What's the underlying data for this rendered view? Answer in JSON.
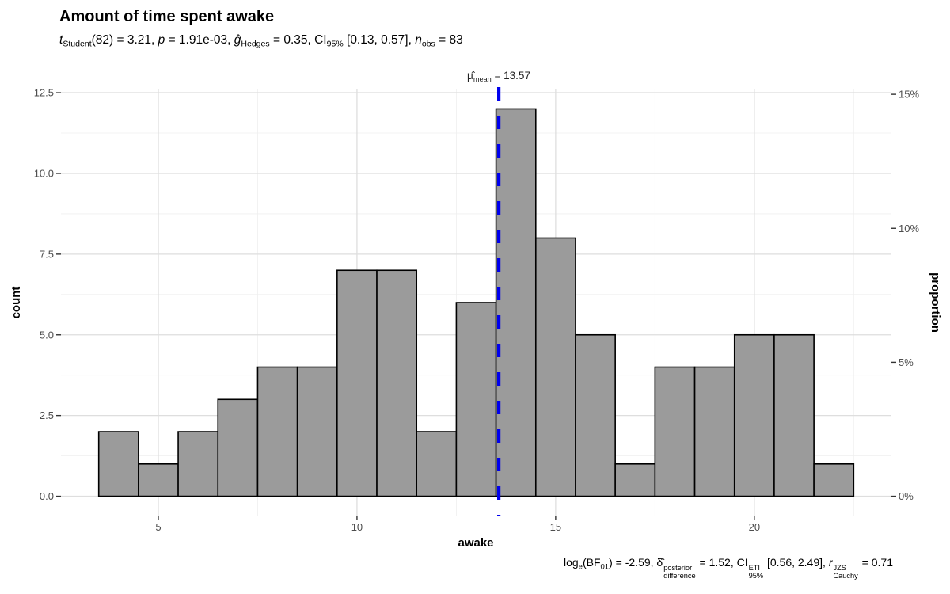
{
  "header": {
    "title": "Amount of time spent awake"
  },
  "rich_text": {
    "subtitle": [
      {
        "t": "t",
        "i": true
      },
      {
        "t": "Student",
        "s": "sub"
      },
      {
        "t": "(82) = 3.21, "
      },
      {
        "t": "p",
        "i": true
      },
      {
        "t": " = 1.91e-03, "
      },
      {
        "t": "ĝ",
        "i": true
      },
      {
        "t": "Hedges",
        "s": "sub"
      },
      {
        "t": " = 0.35, CI"
      },
      {
        "t": "95%",
        "s": "sub"
      },
      {
        "t": " [0.13, 0.57], "
      },
      {
        "t": "n",
        "i": true
      },
      {
        "t": "obs",
        "s": "sub"
      },
      {
        "t": " = 83"
      }
    ],
    "mean_label": [
      {
        "t": "μ̂"
      },
      {
        "t": "mean",
        "s": "sub"
      },
      {
        "t": " = 13.57"
      }
    ],
    "caption": [
      {
        "t": "log"
      },
      {
        "t": "e",
        "s": "sub"
      },
      {
        "t": "(BF"
      },
      {
        "t": "01",
        "s": "sub"
      },
      {
        "t": ") = -2.59, "
      },
      {
        "t": "δ̂"
      },
      {
        "sup": "posterior",
        "sub": "difference"
      },
      {
        "t": " = 1.52, CI"
      },
      {
        "sup": "ETI",
        "sub": "95%"
      },
      {
        "t": " [0.56, 2.49], "
      },
      {
        "t": "r",
        "i": true
      },
      {
        "sup": "JZS",
        "sub": "Cauchy"
      },
      {
        "t": " = 0.71"
      }
    ]
  },
  "chart_data": {
    "type": "bar",
    "subtype": "histogram",
    "title": "Amount of time spent awake",
    "xlabel": "awake",
    "ylabel": "count",
    "y2label": "proportion",
    "bin_width": 1,
    "bin_centers": [
      4,
      5,
      6,
      7,
      8,
      9,
      10,
      11,
      12,
      13,
      14,
      15,
      16,
      17,
      18,
      19,
      20,
      21,
      22
    ],
    "counts": [
      2,
      1,
      2,
      3,
      4,
      4,
      7,
      7,
      2,
      6,
      12,
      8,
      5,
      1,
      4,
      4,
      5,
      5,
      1
    ],
    "n_obs": 83,
    "mean": 13.57,
    "mean_label_value": "13.57",
    "x_ticks": [
      5,
      10,
      15,
      20
    ],
    "x_tick_labels": [
      "5",
      "10",
      "15",
      "20"
    ],
    "x_minor": [
      7.5,
      12.5,
      17.5,
      22.5
    ],
    "y_ticks": [
      0,
      2.5,
      5,
      7.5,
      10,
      12.5
    ],
    "y_tick_labels": [
      "0.0",
      "2.5",
      "5.0",
      "7.5",
      "10.0",
      "12.5"
    ],
    "y_minor": [
      1.25,
      3.75,
      6.25,
      8.75,
      11.25
    ],
    "y2_ticks": [
      0,
      5,
      10,
      15
    ],
    "y2_tick_labels": [
      "0%",
      "5%",
      "10%",
      "15%"
    ],
    "xlim": [
      2.55,
      23.45
    ],
    "ylim": [
      -0.6,
      12.6
    ],
    "grid": true,
    "legend": "none",
    "colors": {
      "bar_fill": "#9b9b9b",
      "bar_stroke": "#000000",
      "mean_line": "#0000ee",
      "grid_major": "#dedede",
      "grid_minor": "#efefef",
      "tick_mark": "#333333",
      "tick_label": "#4d4d4d",
      "background": "#ffffff"
    }
  }
}
